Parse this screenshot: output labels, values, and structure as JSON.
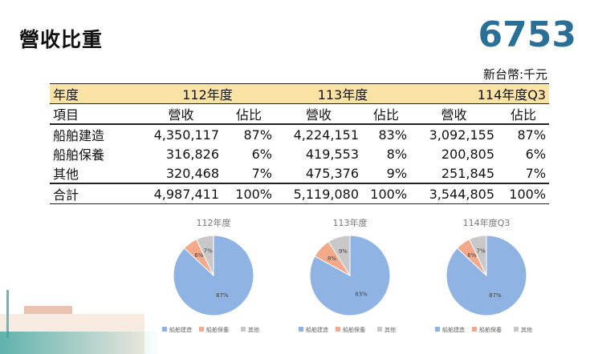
{
  "page": {
    "title": "營收比重",
    "code": "6753",
    "unit": "新台幣:千元"
  },
  "table": {
    "year_label": "年度",
    "years": [
      "112年度",
      "113年度",
      "114年度Q3"
    ],
    "item_label": "項目",
    "revenue_label": "營收",
    "share_label": "佔比",
    "rows": [
      {
        "item": "船舶建造",
        "values": [
          "4,350,117",
          "87%",
          "4,224,151",
          "83%",
          "3,092,155",
          "87%"
        ]
      },
      {
        "item": "船舶保養",
        "values": [
          "316,826",
          "6%",
          "419,553",
          "8%",
          "200,805",
          "6%"
        ]
      },
      {
        "item": "其他",
        "values": [
          "320,468",
          "7%",
          "475,376",
          "9%",
          "251,845",
          "7%"
        ]
      }
    ],
    "total": {
      "item": "合計",
      "values": [
        "4,987,411",
        "100%",
        "5,119,080",
        "100%",
        "3,544,805",
        "100%"
      ]
    }
  },
  "colors": {
    "construction": "#8fb4e3",
    "maintenance": "#f3a98a",
    "other": "#c8c8c8",
    "header_bg": "#fbe3a6",
    "code_color": "#2a6f96"
  },
  "chart_data": [
    {
      "type": "pie",
      "title": "112年度",
      "categories": [
        "船舶建造",
        "船舶保養",
        "其他"
      ],
      "values": [
        87,
        6,
        7
      ],
      "labels": [
        "87%",
        "6%",
        "7%"
      ],
      "legend": "bottom"
    },
    {
      "type": "pie",
      "title": "113年度",
      "categories": [
        "船舶建造",
        "船舶保養",
        "其他"
      ],
      "values": [
        83,
        8,
        9
      ],
      "labels": [
        "83%",
        "8%",
        "9%"
      ],
      "legend": "bottom"
    },
    {
      "type": "pie",
      "title": "114年度Q3",
      "categories": [
        "船舶建造",
        "船舶保養",
        "其他"
      ],
      "values": [
        87,
        6,
        7
      ],
      "labels": [
        "87%",
        "6%",
        "7%"
      ],
      "legend": "bottom"
    }
  ]
}
